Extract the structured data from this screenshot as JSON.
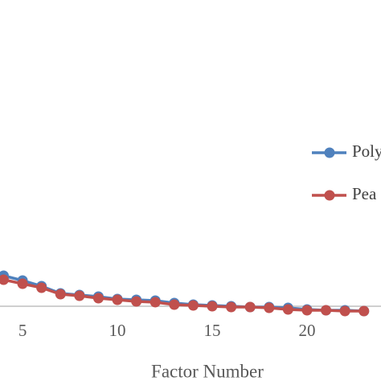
{
  "chart_data": {
    "type": "line",
    "x_label": "Factor Number",
    "x": [
      4,
      5,
      6,
      7,
      8,
      9,
      10,
      11,
      12,
      13,
      14,
      15,
      16,
      17,
      18,
      19,
      20,
      21,
      22,
      23
    ],
    "series": [
      {
        "name": "Poly",
        "color": "#4f81bd",
        "values": [
          3.8,
          3.2,
          2.5,
          1.6,
          1.4,
          1.2,
          0.9,
          0.8,
          0.7,
          0.4,
          0.2,
          0.1,
          0.0,
          -0.1,
          -0.1,
          -0.2,
          -0.4,
          -0.5,
          -0.5,
          -0.6
        ]
      },
      {
        "name": "Pea",
        "color": "#c0504d",
        "values": [
          3.3,
          2.8,
          2.3,
          1.5,
          1.3,
          1.0,
          0.8,
          0.6,
          0.5,
          0.2,
          0.1,
          0.0,
          -0.1,
          -0.1,
          -0.2,
          -0.4,
          -0.5,
          -0.5,
          -0.6,
          -0.6
        ]
      }
    ],
    "xlim": [
      3.81,
      23.9
    ],
    "xticks": [
      5,
      10,
      15,
      20
    ],
    "ylim": [
      -1,
      38
    ]
  }
}
